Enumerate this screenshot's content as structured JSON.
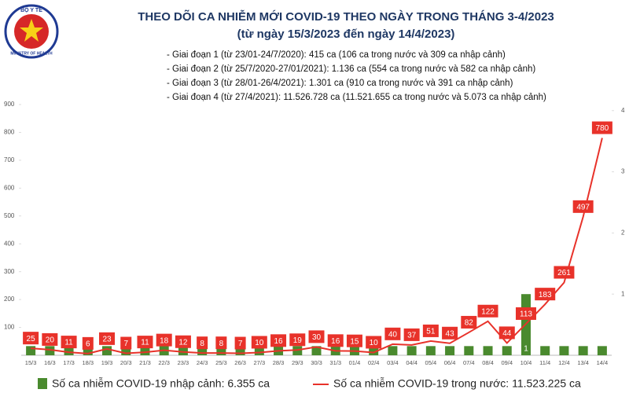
{
  "logo": [
    "BỘ Y TẾ",
    "MINISTRY OF HEALTH"
  ],
  "chart_data": {
    "type": "bar-line",
    "title": "THEO DÕI CA NHIỄM MỚI COVID-19 THEO NGÀY TRONG THÁNG 3-4/2023",
    "subtitle": "(từ ngày 15/3/2023 đến ngày 14/4/2023)",
    "annotations": [
      "- Giai đoạn 1 (từ 23/01-24/7/2020): 415 ca (106 ca trong nước và 309 ca nhập cảnh)",
      "- Giai đoạn 2 (từ 25/7/2020-27/01/2021): 1.136 ca (554 ca trong nước và 582 ca nhập cảnh)",
      "- Giai đoạn 3 (từ 28/01-26/4/2021): 1.301 ca (910 ca trong nước và 391 ca nhập cảnh)",
      "- Giai đoạn 4 (từ 27/4/2021): 11.526.728 ca (11.521.655 ca trong nước và 5.073 ca nhập cảnh)"
    ],
    "categories": [
      "15/3",
      "16/3",
      "17/3",
      "18/3",
      "19/3",
      "20/3",
      "21/3",
      "22/3",
      "23/3",
      "24/3",
      "25/3",
      "26/3",
      "27/3",
      "28/3",
      "29/3",
      "30/3",
      "31/3",
      "01/4",
      "02/4",
      "03/4",
      "04/4",
      "05/4",
      "06/4",
      "07/4",
      "08/4",
      "09/4",
      "10/4",
      "11/4",
      "12/4",
      "13/4",
      "14/4"
    ],
    "series": [
      {
        "name": "Số ca nhiễm COVID-19 nhập cảnh: 6.355 ca",
        "kind": "bar",
        "axis": "y2",
        "color": "#4a8a2e",
        "values": [
          0.15,
          0.15,
          0.15,
          0.15,
          0.15,
          0.15,
          0.15,
          0.15,
          0.15,
          0.15,
          0.15,
          0.15,
          0.15,
          0.15,
          0.15,
          0.15,
          0.15,
          0.15,
          0.15,
          0.15,
          0.15,
          0.15,
          0.15,
          0.15,
          0.15,
          0.15,
          1,
          0.15,
          0.15,
          0.15,
          0.15
        ]
      },
      {
        "name": "Số ca nhiễm COVID-19 trong nước: 11.523.225 ca",
        "kind": "line",
        "color": "#e8322a",
        "values": [
          25,
          20,
          11,
          6,
          23,
          7,
          11,
          18,
          12,
          8,
          8,
          7,
          10,
          16,
          19,
          30,
          16,
          15,
          10,
          40,
          37,
          51,
          43,
          82,
          122,
          44,
          113,
          183,
          261,
          497,
          780
        ]
      }
    ],
    "ylim": [
      0,
      900
    ],
    "yticks": [
      100,
      200,
      300,
      400,
      500,
      600,
      700,
      800,
      900
    ],
    "y2lim": [
      0,
      4.1
    ],
    "y2ticks": [
      1,
      2,
      3,
      4
    ]
  }
}
